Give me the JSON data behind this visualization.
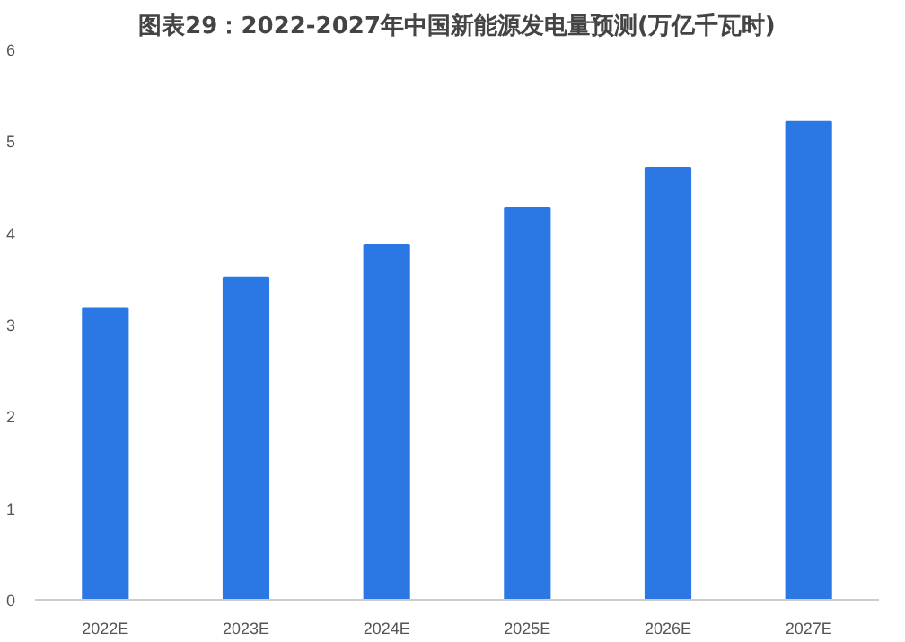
{
  "chart_data": {
    "type": "bar",
    "title": "图表29：2022-2027年中国新能源发电量预测(万亿千瓦时)",
    "categories": [
      "2022E",
      "2023E",
      "2024E",
      "2025E",
      "2026E",
      "2027E"
    ],
    "values": [
      3.18,
      3.51,
      3.87,
      4.27,
      4.71,
      5.21
    ],
    "color": "#2b78e4",
    "ylim": [
      0,
      6
    ],
    "yticks": [
      0,
      1,
      2,
      3,
      4,
      5,
      6
    ],
    "grid": false
  }
}
